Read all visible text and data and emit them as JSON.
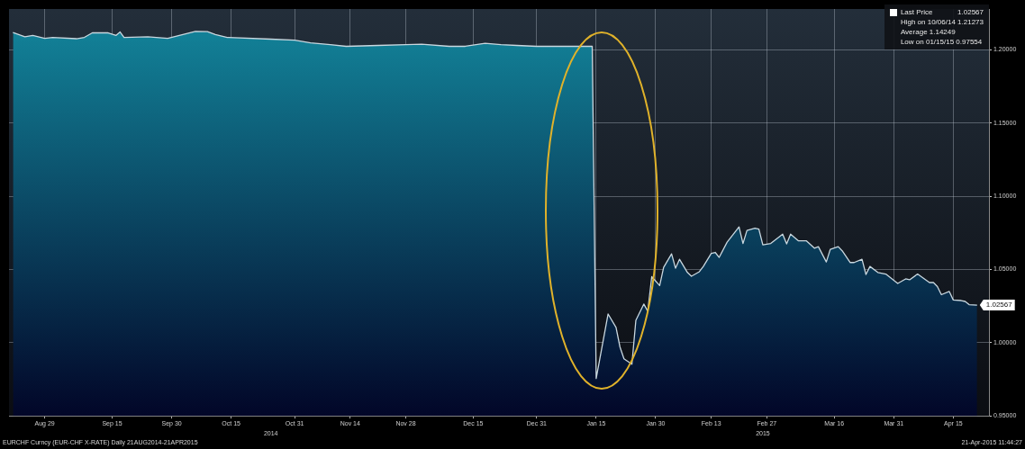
{
  "chart_data": {
    "type": "area",
    "x": [
      "2014-08-21",
      "2014-08-24",
      "2014-08-26",
      "2014-08-29",
      "2014-08-31",
      "2014-09-06",
      "2014-09-08",
      "2014-09-10",
      "2014-09-14",
      "2014-09-16",
      "2014-09-17",
      "2014-09-18",
      "2014-09-24",
      "2014-09-29",
      "2014-10-06",
      "2014-10-09",
      "2014-10-11",
      "2014-10-14",
      "2014-10-25",
      "2014-10-31",
      "2014-11-04",
      "2014-11-09",
      "2014-11-13",
      "2014-11-21",
      "2014-11-28",
      "2014-12-02",
      "2014-12-09",
      "2014-12-13",
      "2014-12-18",
      "2014-12-22",
      "2014-12-26",
      "2014-12-31",
      "2015-01-14",
      "2015-01-15",
      "2015-01-18",
      "2015-01-20",
      "2015-01-21",
      "2015-01-22",
      "2015-01-24",
      "2015-01-25",
      "2015-01-27",
      "2015-01-28",
      "2015-01-29",
      "2015-01-31",
      "2015-02-01",
      "2015-02-03",
      "2015-02-04",
      "2015-02-05",
      "2015-02-07",
      "2015-02-08",
      "2015-02-10",
      "2015-02-11",
      "2015-02-13",
      "2015-02-14",
      "2015-02-15",
      "2015-02-17",
      "2015-02-20",
      "2015-02-21",
      "2015-02-22",
      "2015-02-24",
      "2015-02-25",
      "2015-02-26",
      "2015-02-28",
      "2015-03-03",
      "2015-03-04",
      "2015-03-05",
      "2015-03-07",
      "2015-03-09",
      "2015-03-11",
      "2015-03-12",
      "2015-03-14",
      "2015-03-15",
      "2015-03-17",
      "2015-03-18",
      "2015-03-20",
      "2015-03-21",
      "2015-03-23",
      "2015-03-24",
      "2015-03-25",
      "2015-03-27",
      "2015-03-29",
      "2015-04-01",
      "2015-04-03",
      "2015-04-04",
      "2015-04-06",
      "2015-04-09",
      "2015-04-10",
      "2015-04-11",
      "2015-04-12",
      "2015-04-14",
      "2015-04-15",
      "2015-04-17",
      "2015-04-18",
      "2015-04-19",
      "2015-04-21"
    ],
    "series": [
      {
        "name": "Last Price",
        "color": "#13889e",
        "values": [
          1.212,
          1.209,
          1.21,
          1.208,
          1.2085,
          1.2077,
          1.2086,
          1.2117,
          1.2117,
          1.21,
          1.2123,
          1.2086,
          1.209,
          1.208,
          1.2127,
          1.2125,
          1.2105,
          1.2086,
          1.2074,
          1.2067,
          1.2049,
          1.2037,
          1.2025,
          1.2031,
          1.2037,
          1.204,
          1.2025,
          1.2025,
          1.2046,
          1.2037,
          1.2031,
          1.2025,
          1.2025,
          0.9755,
          1.0196,
          1.0104,
          0.997,
          0.989,
          0.9853,
          1.0153,
          1.0264,
          1.0215,
          1.0451,
          1.039,
          1.0515,
          1.0607,
          1.0509,
          1.057,
          1.048,
          1.0454,
          1.0485,
          1.0521,
          1.061,
          1.0617,
          1.0583,
          1.0687,
          1.0791,
          1.0678,
          1.0767,
          1.0783,
          1.0776,
          1.0669,
          1.0678,
          1.0742,
          1.0675,
          1.0742,
          1.0696,
          1.0696,
          1.0646,
          1.0656,
          1.0552,
          1.0638,
          1.0656,
          1.0628,
          1.0548,
          1.0548,
          1.057,
          1.0466,
          1.0521,
          1.048,
          1.0469,
          1.0405,
          1.0436,
          1.043,
          1.0469,
          1.0411,
          1.0411,
          1.0383,
          1.0328,
          1.035,
          1.0292,
          1.0288,
          1.0282,
          1.026,
          1.02567
        ],
        "value_labels": [
          null,
          null,
          null,
          null,
          null,
          null,
          null,
          null,
          null,
          null,
          null,
          null,
          null,
          null,
          null,
          null,
          null,
          null,
          null,
          null,
          null,
          null,
          null,
          null,
          null,
          null,
          null,
          null,
          null,
          null,
          null,
          null,
          null,
          null,
          null,
          null,
          null,
          null,
          null,
          null,
          null,
          null,
          null,
          null,
          null,
          null,
          null,
          null,
          null,
          null,
          null,
          null,
          null,
          null,
          null,
          null,
          null,
          null,
          null,
          null,
          null,
          null,
          null,
          null,
          null,
          null,
          null,
          null,
          null,
          null,
          null,
          null,
          null,
          null,
          null,
          null,
          null,
          null,
          null,
          null,
          null,
          null,
          null,
          null,
          null,
          null,
          null,
          null,
          null,
          null,
          null,
          null,
          null,
          null,
          "1.02567"
        ]
      }
    ],
    "xlim": [
      "2014-08-20",
      "2015-04-24"
    ],
    "xticks": [
      {
        "value": "2014-08-29",
        "label": "Aug 29"
      },
      {
        "value": "2014-09-15",
        "label": "Sep 15"
      },
      {
        "value": "2014-09-30",
        "label": "Sep 30"
      },
      {
        "value": "2014-10-15",
        "label": "Oct 15"
      },
      {
        "value": "2014-10-31",
        "label": "Oct 31"
      },
      {
        "value": "2014-11-14",
        "label": "Nov 14"
      },
      {
        "value": "2014-11-28",
        "label": "Nov 28"
      },
      {
        "value": "2014-12-15",
        "label": "Dec 15"
      },
      {
        "value": "2014-12-31",
        "label": "Dec 31"
      },
      {
        "value": "2015-01-15",
        "label": "Jan 15"
      },
      {
        "value": "2015-01-30",
        "label": "Jan 30"
      },
      {
        "value": "2015-02-13",
        "label": "Feb 13"
      },
      {
        "value": "2015-02-27",
        "label": "Feb 27"
      },
      {
        "value": "2015-03-16",
        "label": "Mar 16"
      },
      {
        "value": "2015-03-31",
        "label": "Mar 31"
      },
      {
        "value": "2015-04-15",
        "label": "Apr 15"
      }
    ],
    "x2lim": [
      "2014-08-20",
      "2015-04-24"
    ],
    "x2ticks": [
      {
        "value": "2014-10-25",
        "label": "2014"
      },
      {
        "value": "2015-02-26",
        "label": "2015"
      }
    ],
    "ylim": [
      0.95,
      1.228
    ],
    "yticks": [
      {
        "value": 0.95,
        "label": "0.95000"
      },
      {
        "value": 1.0,
        "label": "1.00000"
      },
      {
        "value": 1.05,
        "label": "1.05000"
      },
      {
        "value": 1.1,
        "label": "1.10000"
      },
      {
        "value": 1.15,
        "label": "1.15000"
      },
      {
        "value": 1.2,
        "label": "1.20000"
      }
    ],
    "grid": true,
    "legend": "top right",
    "annotations": [
      "1.02567",
      "High on 10/06/14 1.21273",
      "Average 1.14249",
      "Low on 01/15/15 0.97554",
      "EURCHF Curncy (EUR-CHF X-RATE)  Daily 21AUG2014-21APR2015",
      "21-Apr-2015 11:44:27"
    ]
  }
}
